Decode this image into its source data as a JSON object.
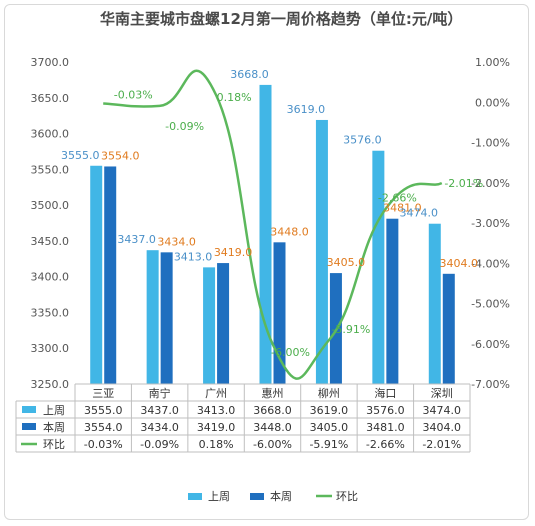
{
  "chart_data": {
    "type": "bar",
    "title": "华南主要城市盘螺12月第一周价格趋势（单位:元/吨）",
    "categories": [
      "三亚",
      "南宁",
      "广州",
      "惠州",
      "柳州",
      "海口",
      "深圳"
    ],
    "series": [
      {
        "name": "上周",
        "type": "bar",
        "axis": "left",
        "color": "#41b6e6",
        "values": [
          3555.0,
          3437.0,
          3413.0,
          3668.0,
          3619.0,
          3576.0,
          3474.0
        ],
        "labels": [
          "3555.0",
          "3437.0",
          "3413.0",
          "3668.0",
          "3619.0",
          "3576.0",
          "3474.0"
        ]
      },
      {
        "name": "本周",
        "type": "bar",
        "axis": "left",
        "color": "#1f6fbf",
        "values": [
          3554.0,
          3434.0,
          3419.0,
          3448.0,
          3405.0,
          3481.0,
          3404.0
        ],
        "labels": [
          "3554.0",
          "3434.0",
          "3419.0",
          "3448.0",
          "3405.0",
          "3481.0",
          "3404.0"
        ]
      },
      {
        "name": "环比",
        "type": "line",
        "axis": "right",
        "color": "#5cb85c",
        "values": [
          -0.03,
          -0.09,
          0.18,
          -6.0,
          -5.91,
          -2.66,
          -2.01
        ],
        "labels": [
          "-0.03%",
          "-0.09%",
          "0.18%",
          "-6.00%",
          "-5.91%",
          "-2.66%",
          "-2.01%"
        ]
      }
    ],
    "table": [
      {
        "name": "上周",
        "cells": [
          "3555.0",
          "3437.0",
          "3413.0",
          "3668.0",
          "3619.0",
          "3576.0",
          "3474.0"
        ]
      },
      {
        "name": "本周",
        "cells": [
          "3554.0",
          "3434.0",
          "3419.0",
          "3448.0",
          "3405.0",
          "3481.0",
          "3404.0"
        ]
      },
      {
        "name": "环比",
        "cells": [
          "-0.03%",
          "-0.09%",
          "0.18%",
          "-6.00%",
          "-5.91%",
          "-2.66%",
          "-2.01%"
        ]
      }
    ],
    "y_left": {
      "min": 3250,
      "max": 3700,
      "step": 50,
      "ticks": [
        "3250.0",
        "3300.0",
        "3350.0",
        "3400.0",
        "3450.0",
        "3500.0",
        "3550.0",
        "3600.0",
        "3650.0",
        "3700.0"
      ]
    },
    "y_right": {
      "min": -7,
      "max": 1,
      "step": 1,
      "ticks": [
        "-7.00%",
        "-6.00%",
        "-5.00%",
        "-4.00%",
        "-3.00%",
        "-2.00%",
        "-1.00%",
        "0.00%",
        "1.00%"
      ]
    },
    "grid": false,
    "legend": {
      "position": "bottom",
      "items": [
        "上周",
        "本周",
        "环比"
      ]
    },
    "colors": {
      "label_left": "#4a90c8",
      "label_right": "#e07b1f",
      "line_label": "#4cae4c",
      "axis_text": "#555555"
    }
  }
}
